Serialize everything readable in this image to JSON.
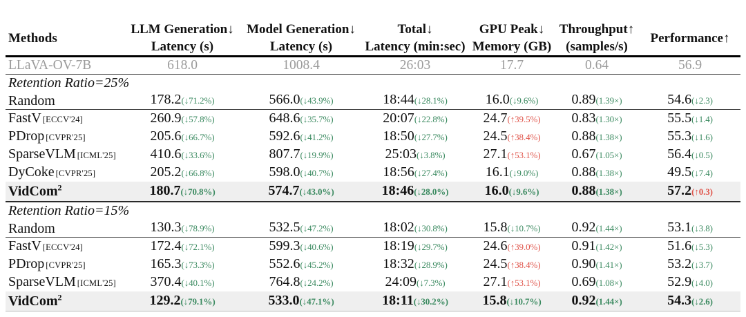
{
  "colors": {
    "green": "#3b8a60",
    "red": "#e0544a",
    "highlight_row": "#efefef",
    "baseline_text": "#9b9b9b"
  },
  "table": {
    "headers": [
      {
        "l1": "Methods",
        "l2": ""
      },
      {
        "l1": "LLM Generation↓",
        "l2": "Latency (s)"
      },
      {
        "l1": "Model Generation↓",
        "l2": "Latency (s)"
      },
      {
        "l1": "Total↓",
        "l2": "Latency (min:sec)"
      },
      {
        "l1": "GPU Peak↓",
        "l2": "Memory (GB)"
      },
      {
        "l1": "Throughput↑",
        "l2": "(samples/s)"
      },
      {
        "l1": "Performance↑",
        "l2": ""
      }
    ],
    "baseline": {
      "method": "LLaVA-OV-7B",
      "values": [
        "618.0",
        "1008.4",
        "26:03",
        "17.7",
        "0.64",
        "56.9"
      ]
    },
    "sections": [
      {
        "title": "Retention Ratio=25%",
        "rows": [
          {
            "method": "Random",
            "venue": "",
            "hl": false,
            "rule": "after",
            "cells": [
              {
                "v": "178.2",
                "a": "(↓71.2%)",
                "c": "g"
              },
              {
                "v": "566.0",
                "a": "(↓43.9%)",
                "c": "g"
              },
              {
                "v": "18:44",
                "a": "(↓28.1%)",
                "c": "g"
              },
              {
                "v": "16.0",
                "a": "(↓9.6%)",
                "c": "g"
              },
              {
                "v": "0.89",
                "a": "(1.39×)",
                "c": "g"
              },
              {
                "v": "54.6",
                "a": "(↓2.3)",
                "c": "g"
              }
            ]
          },
          {
            "method": "FastV",
            "venue": "[ECCV'24]",
            "hl": false,
            "rule": "",
            "cells": [
              {
                "v": "260.9",
                "a": "(↓57.8%)",
                "c": "g"
              },
              {
                "v": "648.6",
                "a": "(↓35.7%)",
                "c": "g"
              },
              {
                "v": "20:07",
                "a": "(↓22.8%)",
                "c": "g"
              },
              {
                "v": "24.7",
                "a": "(↑39.5%)",
                "c": "r"
              },
              {
                "v": "0.83",
                "a": "(1.30×)",
                "c": "g"
              },
              {
                "v": "55.5",
                "a": "(↓1.4)",
                "c": "g"
              }
            ]
          },
          {
            "method": "PDrop",
            "venue": "[CVPR'25]",
            "hl": false,
            "rule": "",
            "cells": [
              {
                "v": "205.6",
                "a": "(↓66.7%)",
                "c": "g"
              },
              {
                "v": "592.6",
                "a": "(↓41.2%)",
                "c": "g"
              },
              {
                "v": "18:50",
                "a": "(↓27.7%)",
                "c": "g"
              },
              {
                "v": "24.5",
                "a": "(↑38.4%)",
                "c": "r"
              },
              {
                "v": "0.88",
                "a": "(1.38×)",
                "c": "g"
              },
              {
                "v": "55.3",
                "a": "(↓1.6)",
                "c": "g"
              }
            ]
          },
          {
            "method": "SparseVLM",
            "venue": "[ICML'25]",
            "hl": false,
            "rule": "",
            "cells": [
              {
                "v": "410.6",
                "a": "(↓33.6%)",
                "c": "g"
              },
              {
                "v": "807.7",
                "a": "(↓19.9%)",
                "c": "g"
              },
              {
                "v": "25:03",
                "a": "(↓3.8%)",
                "c": "g"
              },
              {
                "v": "27.1",
                "a": "(↑53.1%)",
                "c": "r"
              },
              {
                "v": "0.67",
                "a": "(1.05×)",
                "c": "g"
              },
              {
                "v": "56.4",
                "a": "(↓0.5)",
                "c": "g"
              }
            ]
          },
          {
            "method": "DyCoke",
            "venue": "[CVPR'25]",
            "hl": false,
            "rule": "",
            "cells": [
              {
                "v": "205.2",
                "a": "(↓66.8%)",
                "c": "g"
              },
              {
                "v": "598.0",
                "a": "(↓40.7%)",
                "c": "g"
              },
              {
                "v": "18:56",
                "a": "(↓27.4%)",
                "c": "g"
              },
              {
                "v": "16.1",
                "a": "(↓9.0%)",
                "c": "g"
              },
              {
                "v": "0.88",
                "a": "(1.38×)",
                "c": "g"
              },
              {
                "v": "49.5",
                "a": "(↓7.4)",
                "c": "g"
              }
            ]
          },
          {
            "method": "VidCom",
            "sup": "2",
            "venue": "",
            "hl": true,
            "rule": "heavy",
            "cells": [
              {
                "v": "180.7",
                "a": "(↓70.8%)",
                "c": "g"
              },
              {
                "v": "574.7",
                "a": "(↓43.0%)",
                "c": "g"
              },
              {
                "v": "18:46",
                "a": "(↓28.0%)",
                "c": "g"
              },
              {
                "v": "16.0",
                "a": "(↓9.6%)",
                "c": "g"
              },
              {
                "v": "0.88",
                "a": "(1.38×)",
                "c": "g"
              },
              {
                "v": "57.2",
                "a": "(↑0.3)",
                "c": "r"
              }
            ]
          }
        ]
      },
      {
        "title": "Retention Ratio=15%",
        "rows": [
          {
            "method": "Random",
            "venue": "",
            "hl": false,
            "rule": "after",
            "cells": [
              {
                "v": "130.3",
                "a": "(↓78.9%)",
                "c": "g"
              },
              {
                "v": "532.5",
                "a": "(↓47.2%)",
                "c": "g"
              },
              {
                "v": "18:02",
                "a": "(↓30.8%)",
                "c": "g"
              },
              {
                "v": "15.8",
                "a": "(↓10.7%)",
                "c": "g"
              },
              {
                "v": "0.92",
                "a": "(1.44×)",
                "c": "g"
              },
              {
                "v": "53.1",
                "a": "(↓3.8)",
                "c": "g"
              }
            ]
          },
          {
            "method": "FastV",
            "venue": "[ECCV'24]",
            "hl": false,
            "rule": "",
            "cells": [
              {
                "v": "172.4",
                "a": "(↓72.1%)",
                "c": "g"
              },
              {
                "v": "599.3",
                "a": "(↓40.6%)",
                "c": "g"
              },
              {
                "v": "18:19",
                "a": "(↓29.7%)",
                "c": "g"
              },
              {
                "v": "24.6",
                "a": "(↑39.0%)",
                "c": "r"
              },
              {
                "v": "0.91",
                "a": "(1.42×)",
                "c": "g"
              },
              {
                "v": "51.6",
                "a": "(↓5.3)",
                "c": "g"
              }
            ]
          },
          {
            "method": "PDrop",
            "venue": "[CVPR'25]",
            "hl": false,
            "rule": "",
            "cells": [
              {
                "v": "165.3",
                "a": "(↓73.3%)",
                "c": "g"
              },
              {
                "v": "552.6",
                "a": "(↓45.2%)",
                "c": "g"
              },
              {
                "v": "18:32",
                "a": "(↓28.9%)",
                "c": "g"
              },
              {
                "v": "24.5",
                "a": "(↑38.4%)",
                "c": "r"
              },
              {
                "v": "0.90",
                "a": "(1.41×)",
                "c": "g"
              },
              {
                "v": "53.2",
                "a": "(↓3.7)",
                "c": "g"
              }
            ]
          },
          {
            "method": "SparseVLM",
            "venue": "[ICML'25]",
            "hl": false,
            "rule": "",
            "cells": [
              {
                "v": "370.4",
                "a": "(↓40.1%)",
                "c": "g"
              },
              {
                "v": "764.8",
                "a": "(↓24.2%)",
                "c": "g"
              },
              {
                "v": "24:09",
                "a": "(↓7.3%)",
                "c": "g"
              },
              {
                "v": "27.1",
                "a": "(↑53.1%)",
                "c": "r"
              },
              {
                "v": "0.69",
                "a": "(1.08×)",
                "c": "g"
              },
              {
                "v": "52.9",
                "a": "(↓4.0)",
                "c": "g"
              }
            ]
          },
          {
            "method": "VidCom",
            "sup": "2",
            "venue": "",
            "hl": true,
            "rule": "faint",
            "cells": [
              {
                "v": "129.2",
                "a": "(↓79.1%)",
                "c": "g"
              },
              {
                "v": "533.0",
                "a": "(↓47.1%)",
                "c": "g"
              },
              {
                "v": "18:11",
                "a": "(↓30.2%)",
                "c": "g"
              },
              {
                "v": "15.8",
                "a": "(↓10.7%)",
                "c": "g"
              },
              {
                "v": "0.92",
                "a": "(1.44×)",
                "c": "g"
              },
              {
                "v": "54.3",
                "a": "(↓2.6)",
                "c": "g"
              }
            ]
          }
        ]
      }
    ]
  }
}
